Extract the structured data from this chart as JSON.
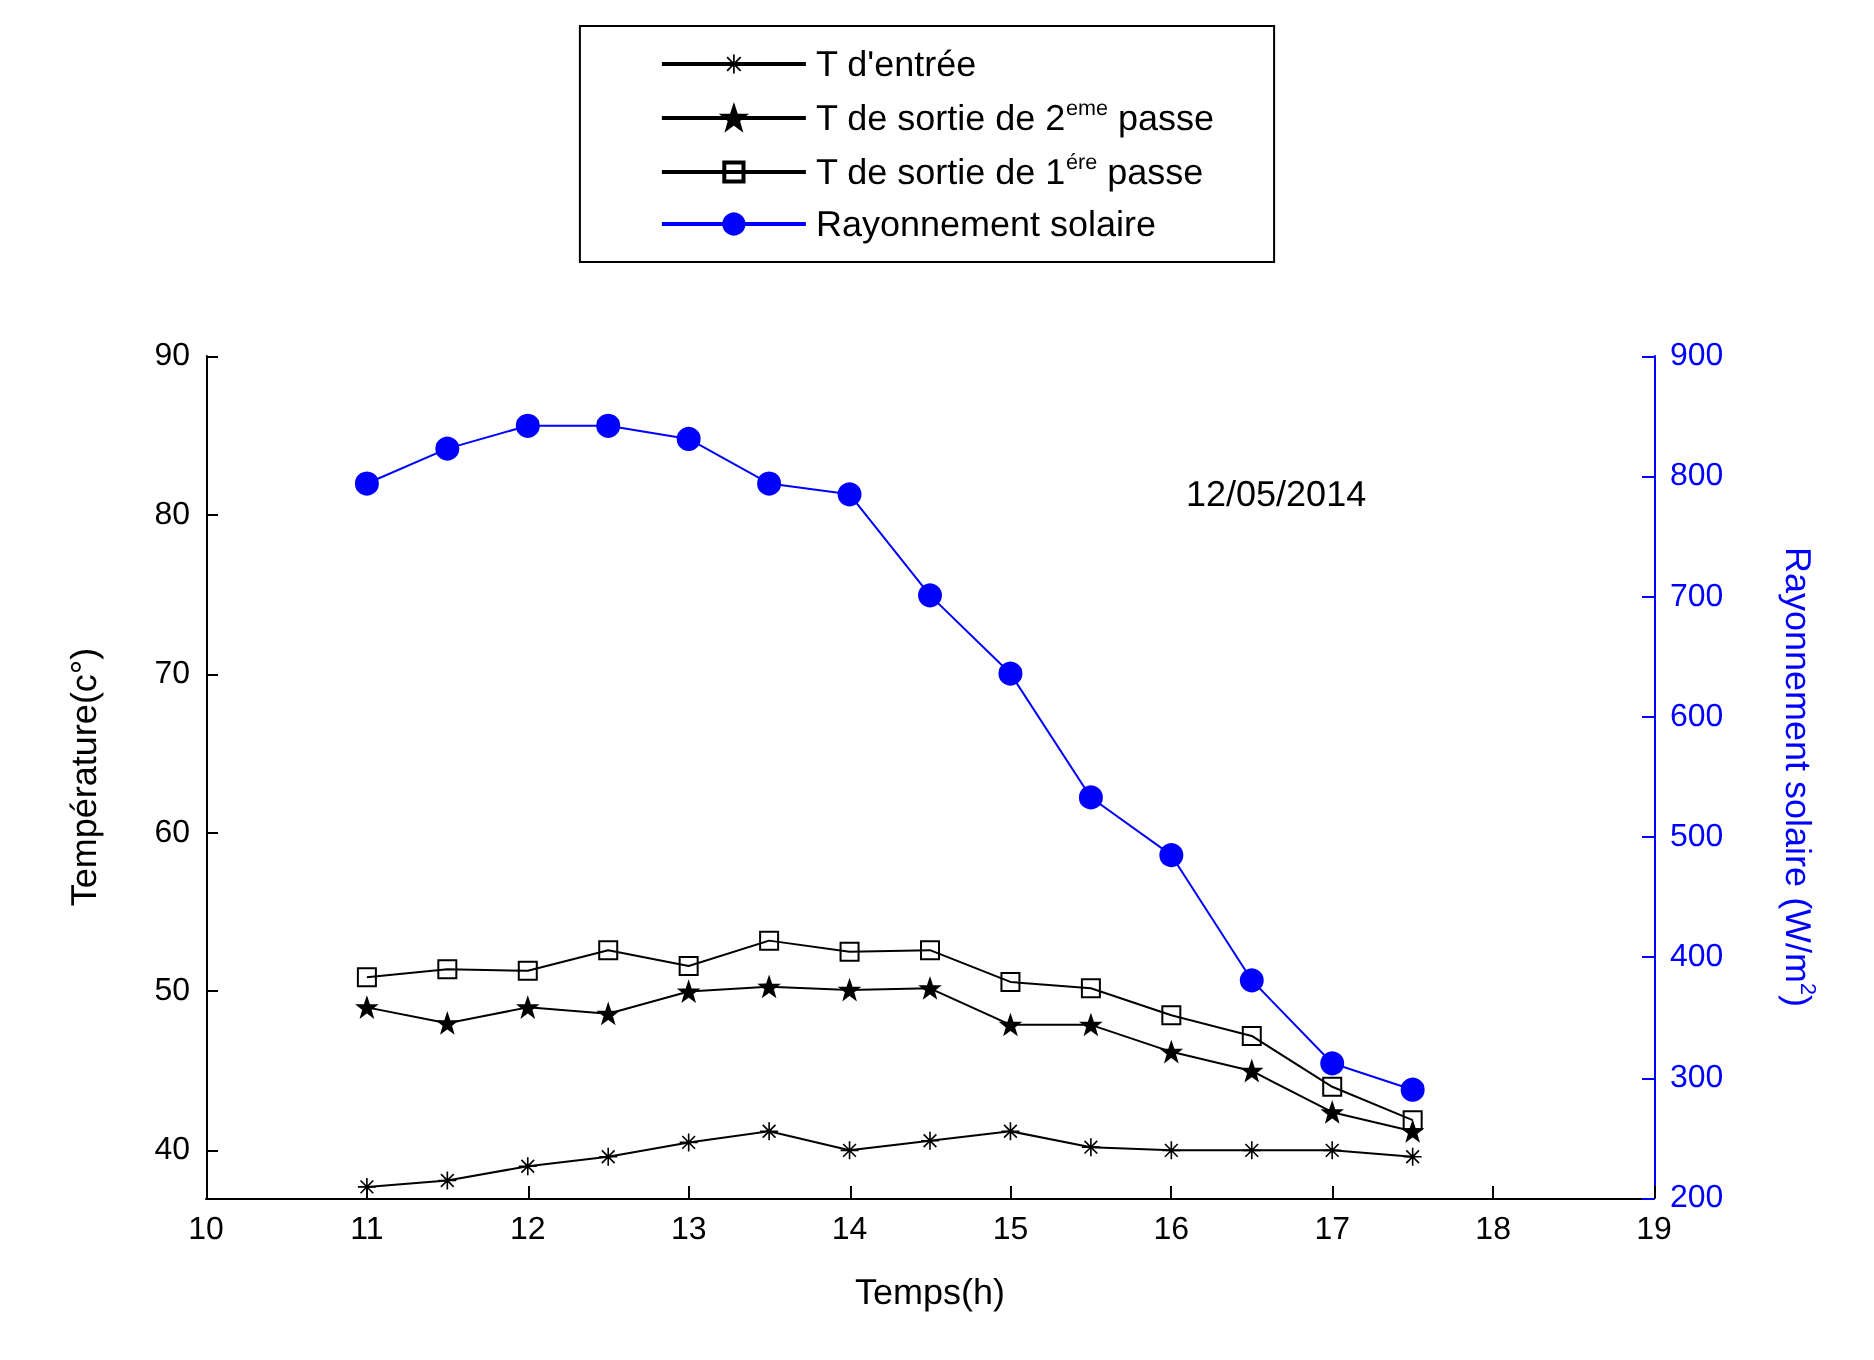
{
  "chart_data": {
    "type": "line",
    "xlabel": "Temps(h)",
    "ylabel": "Température(c°)",
    "y2label": "Rayonnement solaire (W/m$^{2}$)",
    "annotations": [
      "12/05/2014"
    ],
    "x": [
      11,
      11.5,
      12,
      12.5,
      13,
      13.5,
      14,
      14.5,
      15,
      15.5,
      16,
      16.5,
      17,
      17.5
    ],
    "series": [
      {
        "name": "T d'entrée",
        "color": "#000000",
        "marker": "cross",
        "values": [
          37.7,
          38.1,
          39.0,
          39.6,
          40.5,
          41.2,
          40.0,
          40.6,
          41.2,
          40.2,
          40.0,
          40.0,
          40.0,
          39.6
        ]
      },
      {
        "name": "T de sortie de 2$^{eme}$ passe",
        "color": "#000000",
        "marker": "star",
        "values": [
          49.0,
          48.0,
          49.0,
          48.6,
          50.0,
          50.3,
          50.1,
          50.2,
          47.9,
          47.9,
          46.2,
          45.0,
          42.4,
          41.2
        ]
      },
      {
        "name": "T de sortie de 1$^{ére}$ passe",
        "color": "#000000",
        "marker": "square",
        "values": [
          50.9,
          51.4,
          51.3,
          52.6,
          51.6,
          53.2,
          52.5,
          52.6,
          50.6,
          50.2,
          48.5,
          47.2,
          44.0,
          41.9
        ]
      },
      {
        "name": "Rayonnement solaire",
        "color": "#0000ff",
        "marker": "circle",
        "axis": "y2",
        "values": [
          794,
          823,
          842,
          842,
          831,
          794,
          785,
          701,
          636,
          533,
          485,
          381,
          312,
          290
        ]
      }
    ],
    "xlim": [
      10,
      19
    ],
    "xticks": [
      10,
      11,
      12,
      13,
      14,
      15,
      16,
      17,
      18,
      19
    ],
    "ylim": [
      37,
      90
    ],
    "yticks": [
      40,
      50,
      60,
      70,
      80,
      90
    ],
    "y2lim": [
      200,
      900
    ],
    "y2ticks": [
      200,
      300,
      400,
      500,
      600,
      700,
      800,
      900
    ],
    "grid": false,
    "legend": "top",
    "line_style": "solid"
  }
}
